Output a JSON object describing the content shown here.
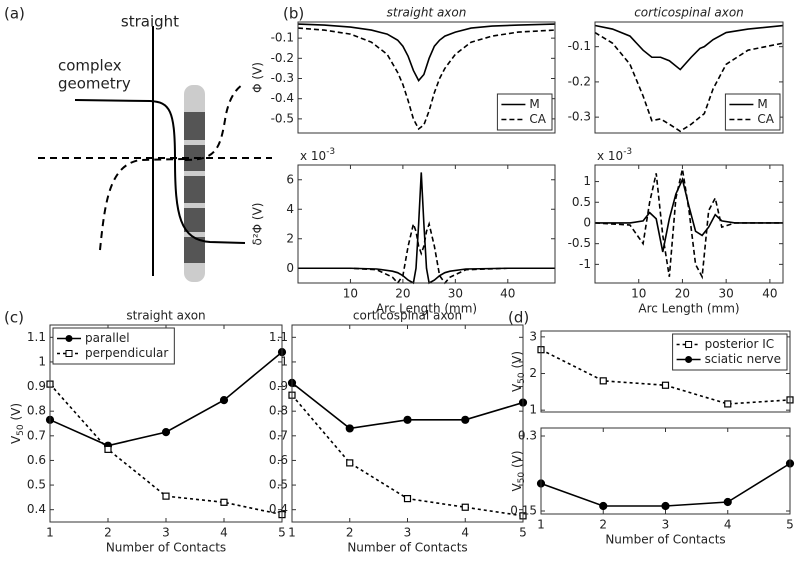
{
  "panel_labels": [
    "(a)",
    "(b)",
    "(c)",
    "(d)"
  ],
  "diagram": {
    "labels": [
      "straight",
      "complex",
      "geometry"
    ]
  },
  "chart_data": [
    {
      "type": "line",
      "title": "straight axon",
      "title_style": "italic",
      "ylabel": "Φ (V)",
      "x": [
        0,
        5,
        10,
        14,
        17,
        19,
        20,
        21,
        22,
        23,
        24,
        25,
        26,
        27,
        28,
        30,
        33,
        37,
        42,
        49
      ],
      "series": [
        {
          "name": "M",
          "color": "#000000",
          "dash": "solid",
          "values": [
            -0.03,
            -0.035,
            -0.045,
            -0.06,
            -0.08,
            -0.11,
            -0.14,
            -0.19,
            -0.26,
            -0.31,
            -0.28,
            -0.2,
            -0.14,
            -0.11,
            -0.09,
            -0.07,
            -0.05,
            -0.04,
            -0.035,
            -0.03
          ]
        },
        {
          "name": "CA",
          "color": "#000000",
          "dash": "dashed",
          "values": [
            -0.05,
            -0.06,
            -0.08,
            -0.12,
            -0.18,
            -0.27,
            -0.33,
            -0.41,
            -0.5,
            -0.55,
            -0.53,
            -0.46,
            -0.37,
            -0.3,
            -0.25,
            -0.18,
            -0.12,
            -0.09,
            -0.07,
            -0.06
          ]
        }
      ],
      "xlim": [
        0,
        49
      ],
      "ylim": [
        -0.57,
        -0.02
      ],
      "yticks": [
        -0.5,
        -0.4,
        -0.3,
        -0.2,
        -0.1
      ],
      "legend": "lower right"
    },
    {
      "type": "line",
      "ylabel": "δ²Φ (V)",
      "xlabel": "Arc Length (mm)",
      "scale_label": {
        "base": "x 10",
        "exponent": "-3"
      },
      "x": [
        0,
        10,
        15,
        18,
        19,
        20,
        21,
        22,
        22.5,
        23,
        23.5,
        24,
        24.5,
        25,
        26,
        27,
        28,
        29,
        32,
        40,
        49
      ],
      "series": [
        {
          "name": "M",
          "color": "#000000",
          "dash": "solid",
          "values": [
            0,
            0,
            -0.05,
            -0.2,
            -0.3,
            -0.5,
            -0.8,
            -1,
            0,
            3,
            6.5,
            3,
            0,
            -1,
            -0.8,
            -0.5,
            -0.3,
            -0.2,
            -0.05,
            0,
            0
          ]
        },
        {
          "name": "CA",
          "color": "#000000",
          "dash": "dashed",
          "values": [
            0,
            0,
            -0.1,
            -0.6,
            -1,
            -0.5,
            1.5,
            3,
            2.5,
            1.5,
            1,
            1.5,
            2.5,
            3,
            1.5,
            -0.5,
            -1,
            -0.6,
            -0.1,
            0,
            0
          ]
        }
      ],
      "xlim": [
        0,
        49
      ],
      "ylim": [
        -1,
        7
      ],
      "xticks": [
        10,
        20,
        30,
        40
      ],
      "yticks": [
        0,
        2,
        4,
        6
      ]
    },
    {
      "type": "line",
      "title": "corticospinal axon",
      "title_style": "italic",
      "x": [
        0,
        4,
        8,
        11,
        13,
        15,
        17,
        19.5,
        22,
        24,
        25,
        27,
        30,
        35,
        43
      ],
      "series": [
        {
          "name": "M",
          "color": "#000000",
          "dash": "solid",
          "values": [
            -0.04,
            -0.05,
            -0.07,
            -0.11,
            -0.13,
            -0.13,
            -0.14,
            -0.165,
            -0.13,
            -0.105,
            -0.1,
            -0.08,
            -0.06,
            -0.05,
            -0.04
          ]
        },
        {
          "name": "CA",
          "color": "#000000",
          "dash": "dashed",
          "values": [
            -0.06,
            -0.09,
            -0.15,
            -0.24,
            -0.31,
            -0.305,
            -0.32,
            -0.34,
            -0.32,
            -0.3,
            -0.29,
            -0.22,
            -0.15,
            -0.11,
            -0.09
          ]
        }
      ],
      "xlim": [
        0,
        43
      ],
      "ylim": [
        -0.345,
        -0.03
      ],
      "yticks": [
        -0.3,
        -0.2,
        -0.1
      ],
      "legend": "lower right"
    },
    {
      "type": "line",
      "xlabel": "Arc Length (mm)",
      "scale_label": {
        "base": "x 10",
        "exponent": "-3"
      },
      "x": [
        0,
        8,
        11,
        12.5,
        14,
        15.5,
        17,
        18.5,
        20,
        21.5,
        23,
        24.5,
        26,
        27.5,
        29,
        32,
        43
      ],
      "series": [
        {
          "name": "M",
          "color": "#000000",
          "dash": "solid",
          "values": [
            0,
            0,
            0.05,
            0.25,
            0.1,
            -0.7,
            0.1,
            0.7,
            1.05,
            0.4,
            -0.2,
            -0.3,
            -0.1,
            0.2,
            0.05,
            0,
            0
          ]
        },
        {
          "name": "CA",
          "color": "#000000",
          "dash": "dashed",
          "values": [
            0,
            -0.05,
            -0.5,
            0.5,
            1.2,
            -0.3,
            -1.3,
            0.6,
            1.3,
            0.3,
            -1.0,
            -1.3,
            0.3,
            0.6,
            -0.1,
            0,
            0
          ]
        }
      ],
      "xlim": [
        0,
        43
      ],
      "ylim": [
        -1.45,
        1.4
      ],
      "xticks": [
        10,
        20,
        30,
        40
      ],
      "yticks": [
        -1,
        -0.5,
        0,
        0.5,
        1
      ]
    },
    {
      "type": "line",
      "title": "straight axon",
      "title_style": "normal",
      "ylabel": {
        "text": "V",
        "sub": "50",
        "suffix": " (V)"
      },
      "xlabel": "Number of Contacts",
      "x": [
        1,
        2,
        3,
        4,
        5
      ],
      "series": [
        {
          "name": "parallel",
          "color": "#000000",
          "dash": "solid",
          "marker": "circle",
          "values": [
            0.765,
            0.66,
            0.715,
            0.845,
            1.04
          ]
        },
        {
          "name": "perpendicular",
          "color": "#000000",
          "dash": "dotted",
          "marker": "square",
          "values": [
            0.91,
            0.645,
            0.455,
            0.43,
            0.38
          ]
        }
      ],
      "xlim": [
        1,
        5
      ],
      "ylim": [
        0.35,
        1.15
      ],
      "xticks": [
        1,
        2,
        3,
        4,
        5
      ],
      "yticks": [
        0.4,
        0.5,
        0.6,
        0.7,
        0.8,
        0.9,
        1,
        1.1
      ],
      "legend": "upper left"
    },
    {
      "type": "line",
      "title": "corticospinal axon",
      "title_style": "normal",
      "xlabel": "Number of Contacts",
      "x": [
        1,
        2,
        3,
        4,
        5
      ],
      "series": [
        {
          "color": "#000000",
          "dash": "solid",
          "marker": "circle",
          "values": [
            0.915,
            0.73,
            0.765,
            0.765,
            0.835
          ]
        },
        {
          "color": "#000000",
          "dash": "dotted",
          "marker": "square",
          "values": [
            0.865,
            0.59,
            0.445,
            0.41,
            0.375
          ]
        }
      ],
      "xlim": [
        1,
        5
      ],
      "ylim": [
        0.35,
        1.15
      ],
      "xticks": [
        1,
        2,
        3,
        4,
        5
      ],
      "yticks": [
        0.4,
        0.5,
        0.6,
        0.7,
        0.8,
        0.9,
        1,
        1.1
      ]
    },
    {
      "type": "line",
      "ylabel": {
        "text": "V",
        "sub": "50",
        "suffix": " (V)"
      },
      "x": [
        1,
        2,
        3,
        4,
        5
      ],
      "series": [
        {
          "name": "posterior IC",
          "color": "#000000",
          "dash": "dotted",
          "marker": "square",
          "values": [
            2.65,
            1.8,
            1.68,
            1.17,
            1.28
          ]
        }
      ],
      "xlim": [
        1,
        5
      ],
      "ylim": [
        0.95,
        3.16
      ],
      "yticks": [
        1,
        2,
        3
      ],
      "legend": "upper right"
    },
    {
      "type": "line",
      "ylabel": {
        "text": "V",
        "sub": "50",
        "suffix": " (V)"
      },
      "xlabel": "Number of Contacts",
      "x": [
        1,
        2,
        3,
        4,
        5
      ],
      "series": [
        {
          "name": "sciatic nerve",
          "color": "#000000",
          "dash": "solid",
          "marker": "circle",
          "values": [
            0.205,
            0.16,
            0.16,
            0.168,
            0.245
          ]
        }
      ],
      "xlim": [
        1,
        5
      ],
      "ylim": [
        0.144,
        0.316
      ],
      "xticks": [
        1,
        2,
        3,
        4,
        5
      ],
      "yticks": [
        0.15,
        0.3
      ]
    }
  ]
}
